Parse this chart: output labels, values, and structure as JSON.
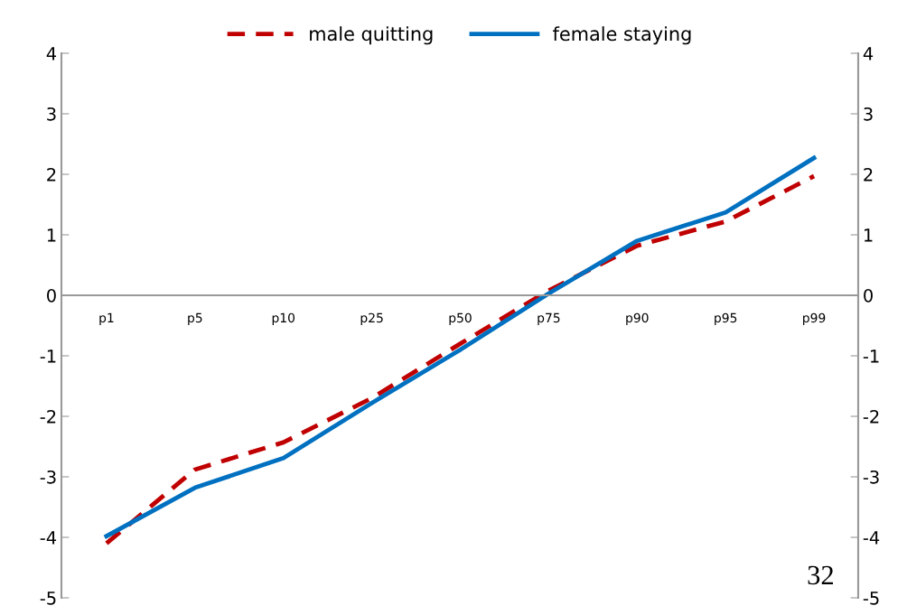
{
  "chart_data": {
    "type": "line",
    "categories": [
      "p1",
      "p5",
      "p10",
      "p25",
      "p50",
      "p75",
      "p90",
      "p95",
      "p99"
    ],
    "series": [
      {
        "name": "male quitting",
        "color": "#c00000",
        "line_style": "dashed",
        "values": [
          -4.1,
          -2.88,
          -2.43,
          -1.7,
          -0.8,
          0.08,
          0.82,
          1.22,
          1.97
        ]
      },
      {
        "name": "female staying",
        "color": "#0070c0",
        "line_style": "solid",
        "values": [
          -3.98,
          -3.18,
          -2.69,
          -1.78,
          -0.9,
          0.03,
          0.9,
          1.37,
          2.27
        ]
      }
    ],
    "ylim": [
      -5,
      4
    ],
    "yticks": [
      -5,
      -4,
      -3,
      -2,
      -1,
      0,
      1,
      2,
      3,
      4
    ],
    "y2lim": [
      -5,
      4
    ],
    "y2ticks": [
      -5,
      -4,
      -3,
      -2,
      -1,
      0,
      1,
      2,
      3,
      4
    ],
    "grid": false,
    "legend": "top",
    "marker": "none",
    "annotations": [
      "32"
    ]
  }
}
